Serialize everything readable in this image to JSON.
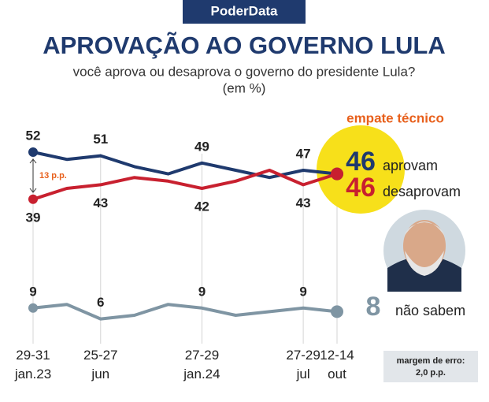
{
  "chart_data": {
    "type": "line",
    "header": "PoderData",
    "title": "APROVAÇÃO AO GOVERNO LULA",
    "subtitle": "você aprova ou desaprova o governo do presidente Lula?",
    "unit_note": "(em %)",
    "annotation": "empate técnico",
    "gap_label": "13 p.p.",
    "margin_note": [
      "margem de erro:",
      "2,0 p.p."
    ],
    "categories": [
      "29-31 jan.23",
      null,
      "25-27 jun",
      null,
      null,
      "27-29 jan.24",
      null,
      null,
      "27-29 jul",
      "12-14 out"
    ],
    "series": [
      {
        "name": "aprovam",
        "color": "#1f3a6e",
        "values": [
          52,
          50,
          51,
          48,
          46,
          49,
          47,
          45,
          47,
          46
        ]
      },
      {
        "name": "desaprovam",
        "color": "#c8202f",
        "values": [
          39,
          42,
          43,
          45,
          44,
          42,
          44,
          47,
          43,
          46
        ]
      },
      {
        "name": "não sabem",
        "color": "#7f95a3",
        "values": [
          9,
          10,
          6,
          7,
          10,
          9,
          7,
          8,
          9,
          8
        ]
      }
    ],
    "ylim": [
      0,
      60
    ]
  }
}
